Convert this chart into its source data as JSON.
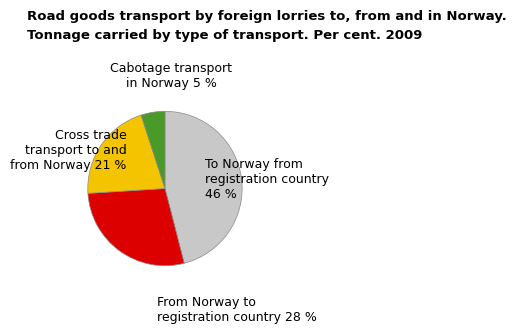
{
  "title_line1": "Road goods transport by foreign lorries to, from and in Norway.",
  "title_line2": "Tonnage carried by type of transport. Per cent. 2009",
  "slices": [
    46,
    28,
    21,
    5
  ],
  "colors": [
    "#c8c8c8",
    "#dd0000",
    "#f5c400",
    "#4a9a2a"
  ],
  "start_angle": 90,
  "counterclock": false,
  "title_fontsize": 9.5,
  "label_fontsize": 9.0,
  "edge_color": "#888888",
  "edge_width": 0.5
}
